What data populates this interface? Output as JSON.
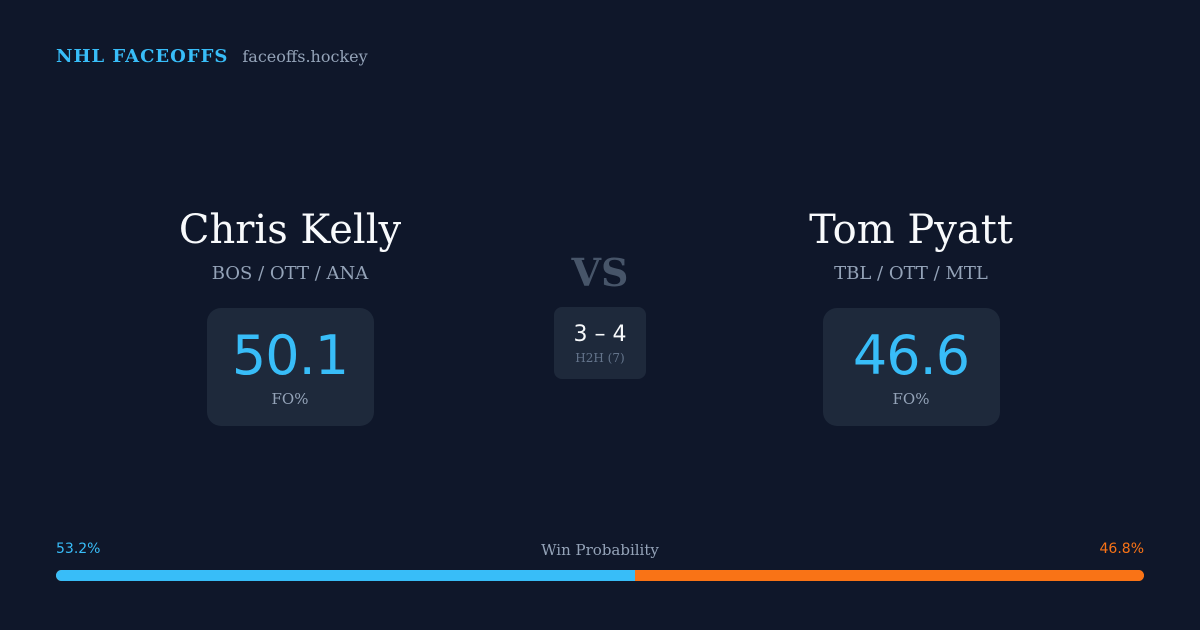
{
  "brand": {
    "name": "NHL FACEOFFS",
    "url": "faceoffs.hockey"
  },
  "players": {
    "left": {
      "name": "Chris Kelly",
      "teams": "BOS / OTT / ANA",
      "fo_pct": "50.1",
      "fo_label": "FO%"
    },
    "right": {
      "name": "Tom Pyatt",
      "teams": "TBL / OTT / MTL",
      "fo_pct": "46.6",
      "fo_label": "FO%"
    }
  },
  "matchup": {
    "vs_label": "VS",
    "h2h_score": "3 – 4",
    "h2h_label": "H2H (7)"
  },
  "win_probability": {
    "title": "Win Probability",
    "left_label": "53.2%",
    "right_label": "46.8%",
    "left_fraction": 0.532,
    "right_fraction": 0.468
  },
  "colors": {
    "background": "#0f172a",
    "card": "#1e293b",
    "accent_blue": "#38bdf8",
    "accent_orange": "#f97316",
    "muted_text": "#94a3b8"
  }
}
